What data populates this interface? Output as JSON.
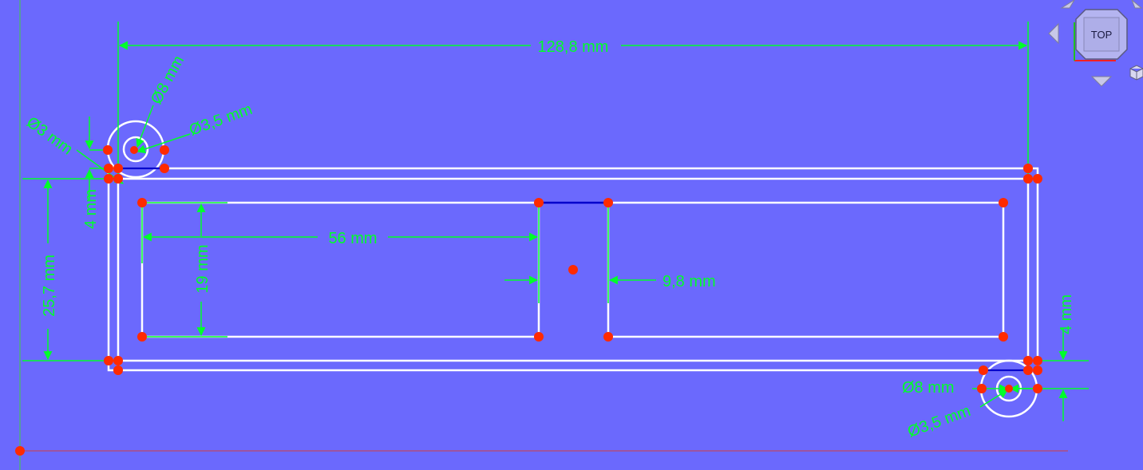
{
  "colors": {
    "background": "#6b69fd",
    "geometry": "#ffffff",
    "constraint": "#00ff2a",
    "point": "#ff2a00",
    "selected_edge": "#0000cc",
    "axis_x": "#d04040",
    "axis_y": "#40d040",
    "navcube_face": "#b4b4f0"
  },
  "navcube": {
    "face_label": "TOP"
  },
  "dimensions": {
    "overall_width": "128,8 mm",
    "overall_height": "25,7 mm",
    "pocket_width": "56 mm",
    "pocket_height": "19 mm",
    "gap_width": "9,8 mm",
    "wall_left": "4 mm",
    "wall_right": "4 mm",
    "tl_outer_diameter": "Ø8 mm",
    "tl_hole_diameter": "Ø3,5 mm",
    "tl_small_diameter": "Ø3 mm",
    "br_outer_diameter": "Ø8 mm",
    "br_hole_diameter": "Ø3,5 mm"
  }
}
